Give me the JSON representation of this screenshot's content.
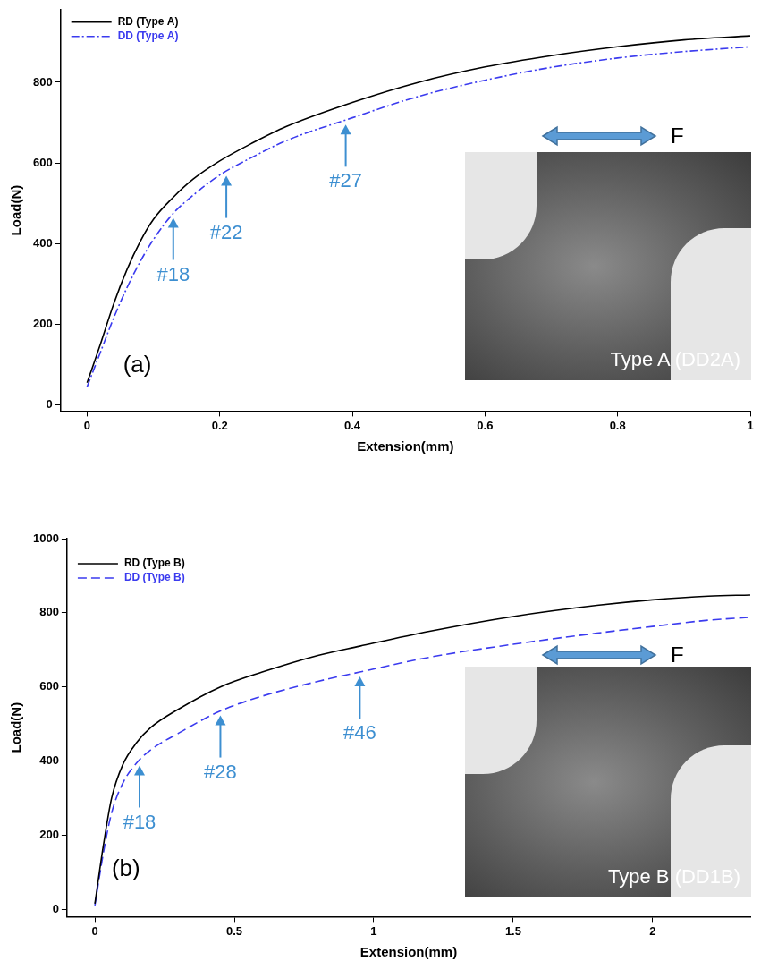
{
  "chart_data": [
    {
      "type": "line",
      "panel_label": "(a)",
      "x_label": "Extension(mm)",
      "y_label": "Load(N)",
      "xlim": [
        -0.04,
        1
      ],
      "ylim": [
        -15,
        980
      ],
      "xticks": [
        0,
        0.2,
        0.4,
        0.6,
        0.8,
        1
      ],
      "yticks": [
        0,
        200,
        400,
        600,
        800
      ],
      "grid": false,
      "legend": "upper left",
      "x": [
        0,
        0.02,
        0.04,
        0.06,
        0.08,
        0.1,
        0.13,
        0.16,
        0.2,
        0.25,
        0.3,
        0.4,
        0.5,
        0.6,
        0.7,
        0.8,
        0.9,
        1.0
      ],
      "series": [
        {
          "name": "RD (Type A)",
          "color": "#000000",
          "line_style": "solid",
          "values": [
            55,
            150,
            250,
            335,
            405,
            460,
            515,
            560,
            605,
            650,
            690,
            750,
            800,
            838,
            866,
            888,
            905,
            915
          ]
        },
        {
          "name": "DD (Type A)",
          "color": "#3b3bef",
          "line_style": "dashdot",
          "values": [
            45,
            130,
            215,
            290,
            355,
            410,
            475,
            520,
            570,
            615,
            655,
            712,
            765,
            805,
            837,
            860,
            876,
            888
          ]
        }
      ],
      "annotations": [
        {
          "text": "#18",
          "x": 0.13,
          "y": 475
        },
        {
          "text": "#22",
          "x": 0.21,
          "y": 579
        },
        {
          "text": "#27",
          "x": 0.39,
          "y": 706
        }
      ],
      "inset": {
        "label": "Type A (DD2A)",
        "force_label": "F"
      }
    },
    {
      "type": "line",
      "panel_label": "(b)",
      "x_label": "Extension(mm)",
      "y_label": "Load(N)",
      "xlim": [
        -0.1,
        2.35
      ],
      "ylim": [
        -20,
        1000
      ],
      "xticks": [
        0,
        0.5,
        1,
        1.5,
        2
      ],
      "yticks": [
        0,
        200,
        400,
        600,
        800,
        1000
      ],
      "grid": false,
      "legend": "upper left",
      "x": [
        0,
        0.03,
        0.06,
        0.1,
        0.15,
        0.2,
        0.3,
        0.45,
        0.6,
        0.8,
        0.95,
        1.2,
        1.5,
        1.8,
        2.0,
        2.2,
        2.35
      ],
      "series": [
        {
          "name": "RD (Type B)",
          "color": "#000000",
          "line_style": "solid",
          "values": [
            15,
            170,
            300,
            390,
            450,
            490,
            540,
            600,
            640,
            685,
            710,
            750,
            790,
            820,
            835,
            845,
            848
          ]
        },
        {
          "name": "DD (Type B)",
          "color": "#3b3bef",
          "line_style": "dashed",
          "values": [
            10,
            150,
            260,
            340,
            395,
            430,
            475,
            535,
            575,
            615,
            640,
            680,
            715,
            745,
            763,
            780,
            788
          ]
        }
      ],
      "annotations": [
        {
          "text": "#18",
          "x": 0.16,
          "y": 400
        },
        {
          "text": "#28",
          "x": 0.45,
          "y": 535
        },
        {
          "text": "#46",
          "x": 0.95,
          "y": 640
        }
      ],
      "inset": {
        "label": "Type B (DD1B)",
        "force_label": "F"
      }
    }
  ]
}
